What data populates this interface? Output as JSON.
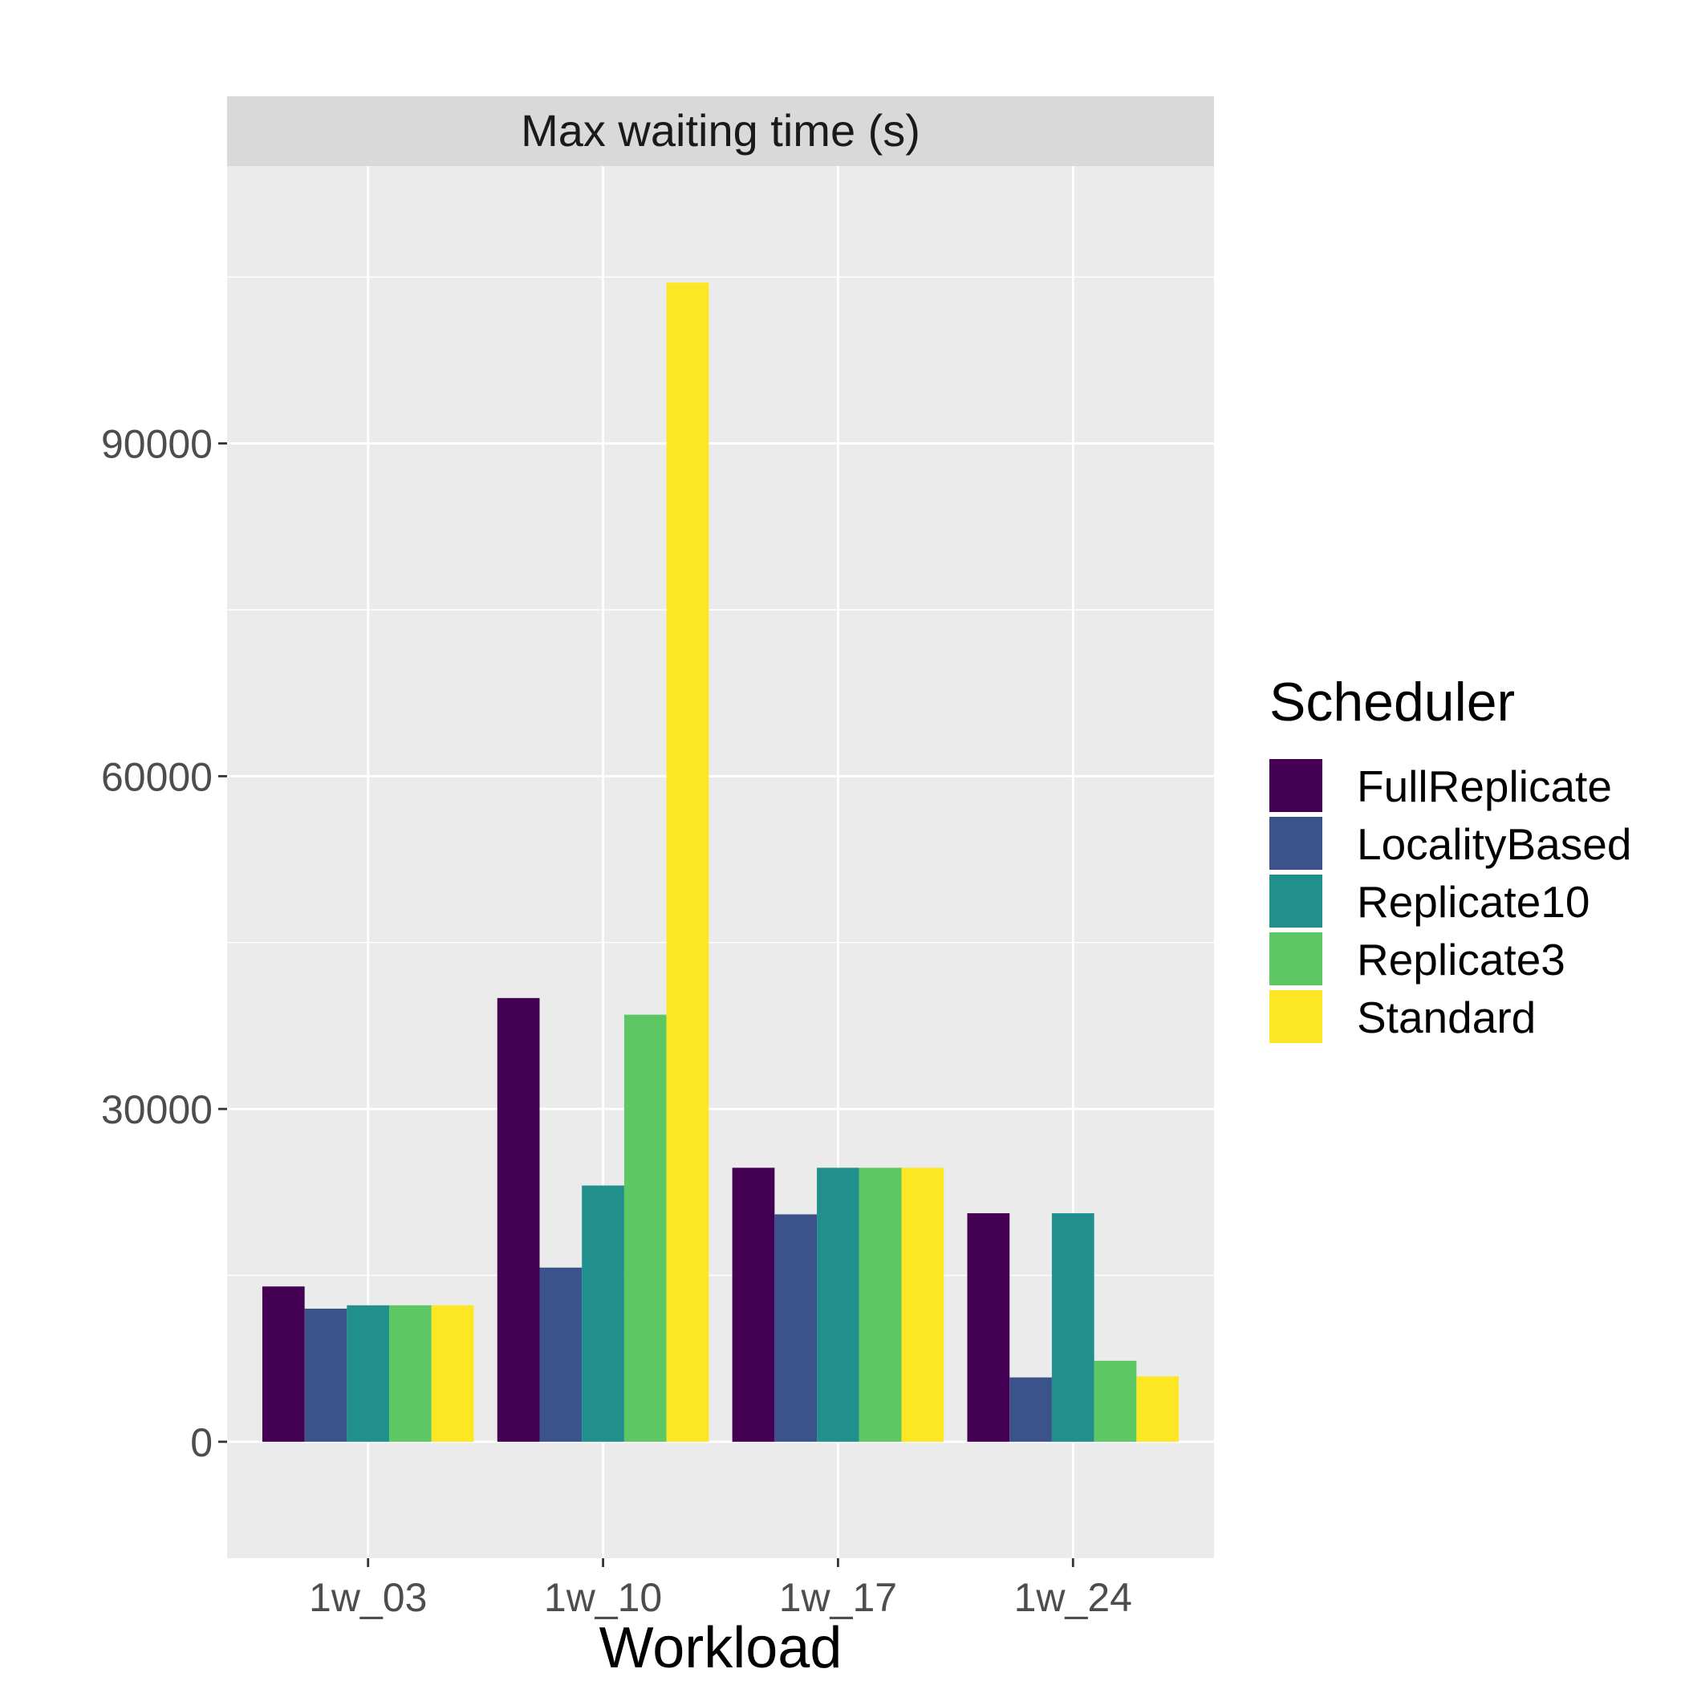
{
  "chart_data": {
    "type": "bar",
    "facet_title": "Max waiting time (s)",
    "xlabel": "Workload",
    "ylabel": "",
    "ylim": [
      -10500,
      115000
    ],
    "yticks": [
      0,
      30000,
      60000,
      90000
    ],
    "categories": [
      "1w_03",
      "1w_10",
      "1w_17",
      "1w_24"
    ],
    "legend_title": "Scheduler",
    "legend_position": "right",
    "grid": true,
    "series": [
      {
        "name": "FullReplicate",
        "color": "#440154",
        "values": [
          14000,
          40000,
          24700,
          20600
        ]
      },
      {
        "name": "LocalityBased",
        "color": "#3B528B",
        "values": [
          12000,
          15700,
          20500,
          5800
        ]
      },
      {
        "name": "Replicate10",
        "color": "#21908C",
        "values": [
          12300,
          23100,
          24700,
          20600
        ]
      },
      {
        "name": "Replicate3",
        "color": "#5DC863",
        "values": [
          12300,
          38500,
          24700,
          7300
        ]
      },
      {
        "name": "Standard",
        "color": "#FDE725",
        "values": [
          12300,
          104500,
          24700,
          5900
        ]
      }
    ]
  }
}
